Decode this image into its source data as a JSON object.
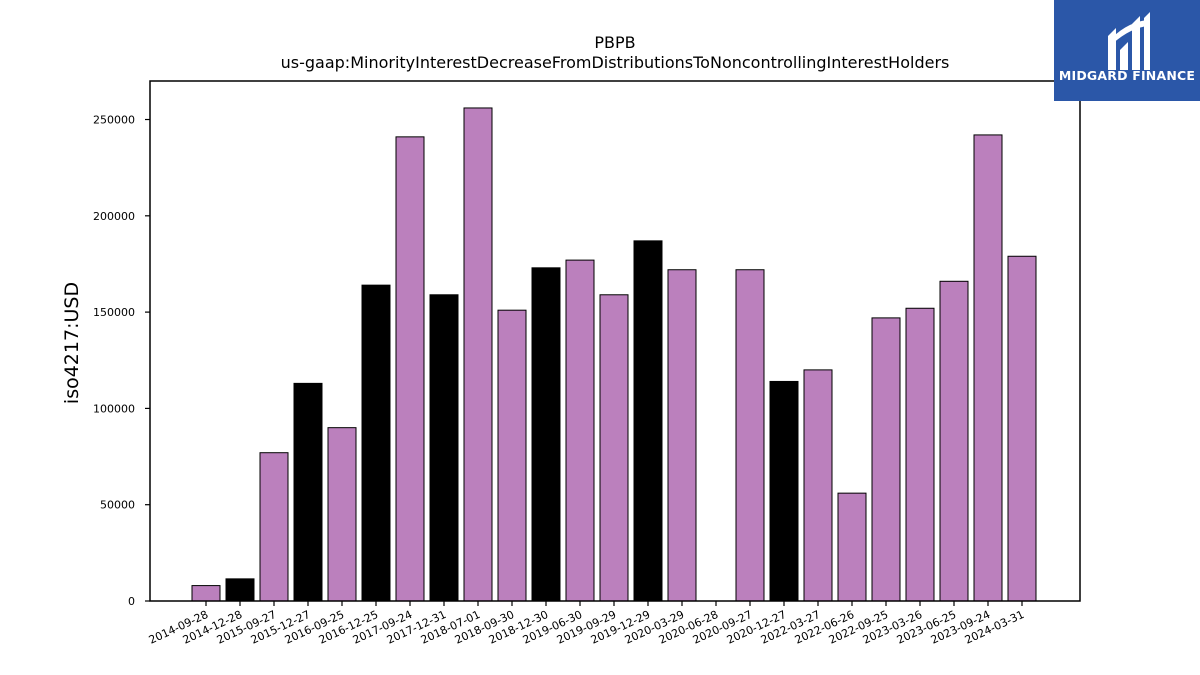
{
  "brand": {
    "name": "MIDGARD FINANCE",
    "background": "#2b57a8"
  },
  "chart_data": {
    "type": "bar",
    "title": "PBPB",
    "subtitle": "us-gaap:MinorityInterestDecreaseFromDistributionsToNoncontrollingInterestHolders",
    "xlabel": "",
    "ylabel": "iso4217:USD",
    "ylim": [
      0,
      270000
    ],
    "yticks": [
      0,
      50000,
      100000,
      150000,
      200000,
      250000
    ],
    "grid": false,
    "colors": {
      "purple": "#bb80bd",
      "black": "#000000"
    },
    "categories": [
      "2014-09-28",
      "2014-12-28",
      "2015-09-27",
      "2015-12-27",
      "2016-09-25",
      "2016-12-25",
      "2017-09-24",
      "2017-12-31",
      "2018-07-01",
      "2018-09-30",
      "2018-12-30",
      "2019-06-30",
      "2019-09-29",
      "2019-12-29",
      "2020-03-29",
      "2020-06-28",
      "2020-09-27",
      "2020-12-27",
      "2022-03-27",
      "2022-06-26",
      "2022-09-25",
      "2023-03-26",
      "2023-06-25",
      "2023-09-24",
      "2024-03-31"
    ],
    "values": [
      8000,
      11500,
      77000,
      113000,
      90000,
      164000,
      241000,
      159000,
      256000,
      151000,
      173000,
      177000,
      159000,
      187000,
      172000,
      0,
      172000,
      114000,
      120000,
      56000,
      147000,
      152000,
      166000,
      242000,
      179000
    ],
    "bar_colors": [
      "purple",
      "black",
      "purple",
      "black",
      "purple",
      "black",
      "purple",
      "black",
      "purple",
      "purple",
      "black",
      "purple",
      "purple",
      "black",
      "purple",
      "purple",
      "purple",
      "black",
      "purple",
      "purple",
      "purple",
      "purple",
      "purple",
      "purple",
      "purple"
    ]
  }
}
